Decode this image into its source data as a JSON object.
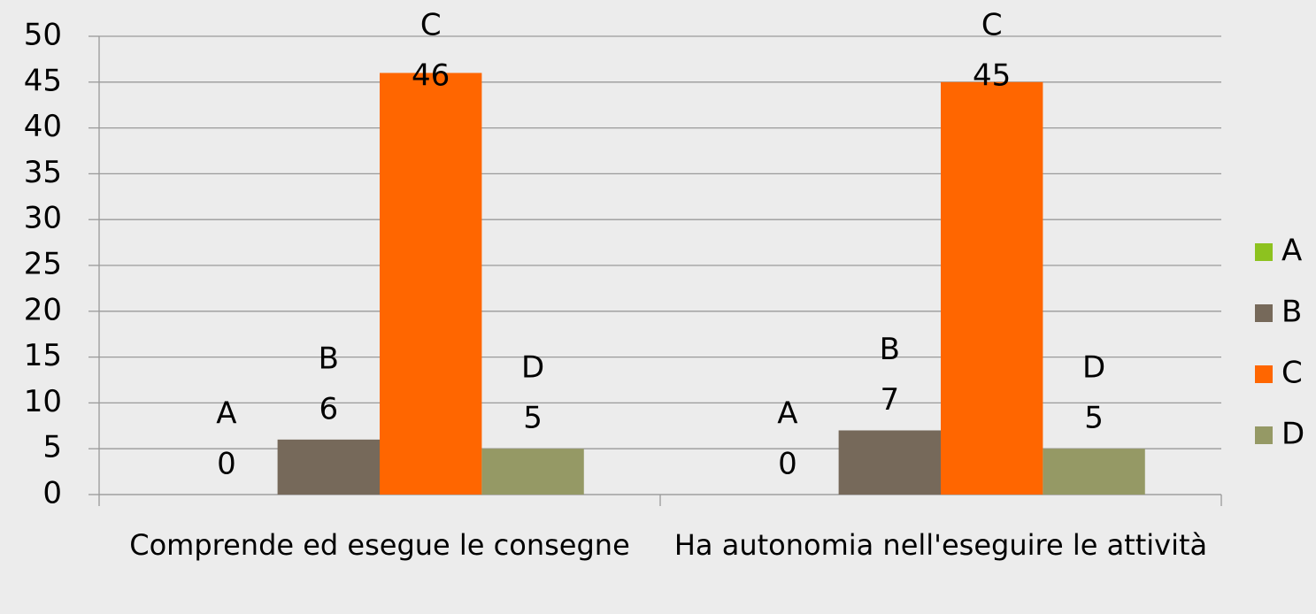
{
  "chart_data": {
    "type": "bar",
    "categories": [
      "Comprende ed esegue le consegne",
      "Ha autonomia nell'eseguire le attività"
    ],
    "series": [
      {
        "name": "A",
        "color": "#8dc21f",
        "values": [
          0,
          0
        ]
      },
      {
        "name": "B",
        "color": "#76695a",
        "values": [
          6,
          7
        ]
      },
      {
        "name": "C",
        "color": "#ff6600",
        "values": [
          46,
          45
        ]
      },
      {
        "name": "D",
        "color": "#959965",
        "values": [
          5,
          5
        ]
      }
    ],
    "ylim": [
      0,
      50
    ],
    "yticks": [
      0,
      5,
      10,
      15,
      20,
      25,
      30,
      35,
      40,
      45,
      50
    ],
    "grid": true,
    "legend": "right"
  }
}
